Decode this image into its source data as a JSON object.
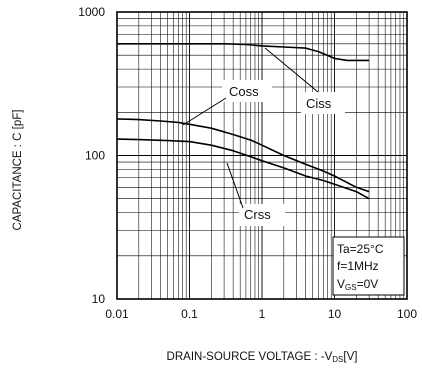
{
  "chart_data": {
    "type": "line",
    "xscale": "log",
    "yscale": "log",
    "xlim": [
      0.01,
      100
    ],
    "ylim": [
      10,
      1000
    ],
    "grid": true,
    "xlabel_main": "DRAIN-SOURCE VOLTAGE : -V",
    "xlabel_sub": "DS",
    "xlabel_unit": "[V]",
    "ylabel": "CAPACITANCE : C [pF]",
    "x_ticks": [
      0.01,
      0.1,
      1,
      10,
      100
    ],
    "x_tick_labels": [
      "0.01",
      "0.1",
      "1",
      "10",
      "100"
    ],
    "y_ticks": [
      10,
      100,
      1000
    ],
    "y_tick_labels": [
      "10",
      "100",
      "1000"
    ],
    "series": [
      {
        "name": "Ciss",
        "x": [
          0.01,
          0.1,
          0.3,
          0.6,
          1,
          2,
          4,
          6,
          10,
          15,
          20,
          30
        ],
        "y": [
          600,
          600,
          600,
          595,
          580,
          570,
          560,
          530,
          475,
          460,
          460,
          460
        ]
      },
      {
        "name": "Coss",
        "x": [
          0.01,
          0.02,
          0.04,
          0.07,
          0.1,
          0.2,
          0.4,
          0.7,
          1,
          2,
          4,
          7,
          10,
          20,
          30
        ],
        "y": [
          180,
          178,
          174,
          170,
          165,
          155,
          140,
          128,
          118,
          100,
          87,
          78,
          72,
          60,
          56
        ]
      },
      {
        "name": "Crss",
        "x": [
          0.01,
          0.02,
          0.05,
          0.1,
          0.2,
          0.4,
          0.7,
          1,
          2,
          4,
          7,
          10,
          20,
          30
        ],
        "y": [
          130,
          129,
          127,
          125,
          118,
          108,
          98,
          92,
          82,
          72,
          67,
          63,
          56,
          50
        ]
      }
    ],
    "labels": {
      "coss": "Coss",
      "ciss": "Ciss",
      "crss": "Crss"
    },
    "conditions": {
      "ta": "Ta=25°C",
      "f": "f=1MHz",
      "vgs_main": "V",
      "vgs_sub": "GS",
      "vgs_tail": "=0V"
    }
  }
}
